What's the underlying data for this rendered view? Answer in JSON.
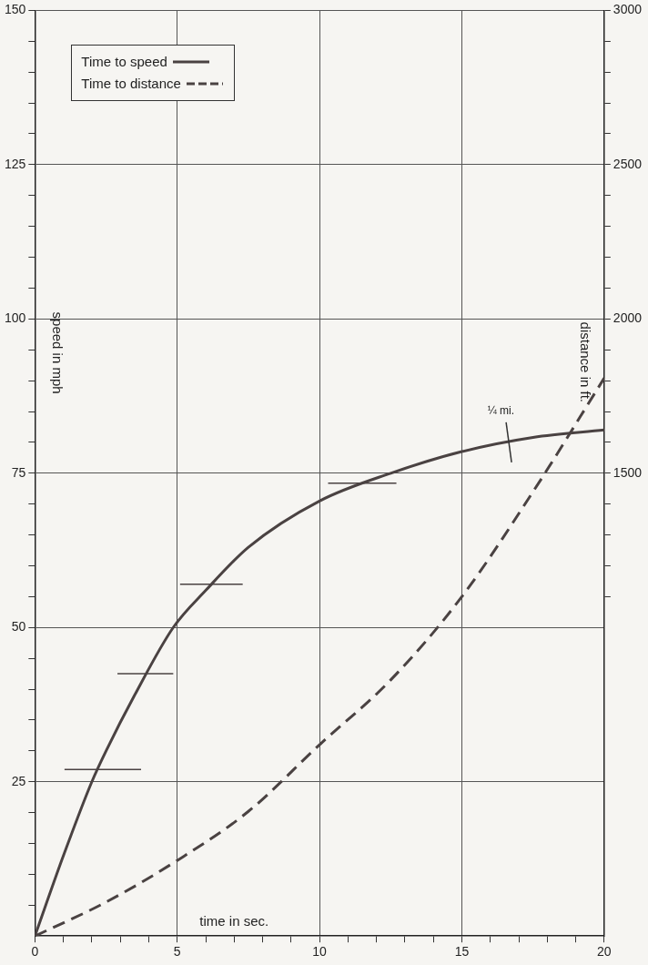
{
  "chart_data": {
    "type": "line",
    "xlabel": "time in sec.",
    "ylabel": "speed in mph",
    "y2label": "distance in ft.",
    "xlim": [
      0,
      20
    ],
    "xticks": [
      0,
      {
        "value": 1,
        "label": null
      },
      {
        "value": 2,
        "label": null
      },
      {
        "value": 3,
        "label": null
      },
      {
        "value": 4,
        "label": null
      },
      5,
      {
        "value": 6,
        "label": null
      },
      {
        "value": 7,
        "label": null
      },
      {
        "value": 8,
        "label": null
      },
      {
        "value": 9,
        "label": null
      },
      10,
      {
        "value": 11,
        "label": null
      },
      {
        "value": 12,
        "label": null
      },
      {
        "value": 13,
        "label": null
      },
      {
        "value": 14,
        "label": null
      },
      15,
      {
        "value": 16,
        "label": null
      },
      {
        "value": 17,
        "label": null
      },
      {
        "value": 18,
        "label": null
      },
      {
        "value": 19,
        "label": null
      },
      20
    ],
    "ylim": [
      0,
      150
    ],
    "yticks": [
      {
        "value": 5,
        "label": null
      },
      {
        "value": 10,
        "label": null
      },
      {
        "value": 15,
        "label": null
      },
      {
        "value": 20,
        "label": null
      },
      25,
      {
        "value": 30,
        "label": null
      },
      {
        "value": 35,
        "label": null
      },
      {
        "value": 40,
        "label": null
      },
      {
        "value": 45,
        "label": null
      },
      50,
      {
        "value": 55,
        "label": null
      },
      {
        "value": 60,
        "label": null
      },
      {
        "value": 65,
        "label": null
      },
      {
        "value": 70,
        "label": null
      },
      75,
      {
        "value": 80,
        "label": null
      },
      {
        "value": 85,
        "label": null
      },
      {
        "value": 90,
        "label": null
      },
      {
        "value": 95,
        "label": null
      },
      100,
      {
        "value": 105,
        "label": null
      },
      {
        "value": 110,
        "label": null
      },
      {
        "value": 115,
        "label": null
      },
      {
        "value": 120,
        "label": null
      },
      125,
      {
        "value": 130,
        "label": null
      },
      {
        "value": 135,
        "label": null
      },
      {
        "value": 140,
        "label": null
      },
      {
        "value": 145,
        "label": null
      },
      150
    ],
    "y2lim": [
      0,
      3000
    ],
    "y2ticks": [
      {
        "value": 1100,
        "label": null
      },
      {
        "value": 1200,
        "label": null
      },
      {
        "value": 1300,
        "label": null
      },
      {
        "value": 1400,
        "label": null
      },
      1500,
      {
        "value": 1600,
        "label": null
      },
      {
        "value": 1700,
        "label": null
      },
      {
        "value": 1800,
        "label": null
      },
      {
        "value": 1900,
        "label": null
      },
      2000,
      {
        "value": 2100,
        "label": null
      },
      {
        "value": 2200,
        "label": null
      },
      {
        "value": 2300,
        "label": null
      },
      {
        "value": 2400,
        "label": null
      },
      2500,
      {
        "value": 2600,
        "label": null
      },
      {
        "value": 2700,
        "label": null
      },
      {
        "value": 2800,
        "label": null
      },
      {
        "value": 2900,
        "label": null
      },
      3000
    ],
    "grid": true,
    "legend": "top left",
    "marker": "none",
    "annotations": [
      {
        "text": "¼ mi.",
        "x": 16.65,
        "y": 80
      }
    ],
    "series": [
      {
        "name": "Time to speed",
        "color": "#4a4242",
        "line_style": "solid",
        "x": [
          0,
          1,
          2,
          2.5,
          3.5,
          4.86,
          6,
          7.5,
          10,
          12.5,
          15,
          17.5,
          20
        ],
        "values": [
          0,
          13,
          25,
          30,
          39,
          50,
          56,
          63,
          70.5,
          75,
          78.5,
          80.8,
          82
        ]
      },
      {
        "name": "Time to distance",
        "color": "#4a4242",
        "line_style": "dashed",
        "axis": "y2",
        "x": [
          0,
          2.5,
          5,
          7.5,
          10,
          12.5,
          15,
          17.5,
          20
        ],
        "values": [
          0,
          110,
          245,
          404,
          620,
          830,
          1100,
          1440,
          1808
        ]
      },
      {
        "color": "#4a4242",
        "line_style": "solid",
        "x": [
          1.04,
          3.73
        ],
        "values": [
          27,
          27
        ]
      },
      {
        "color": "#4a4242",
        "line_style": "solid",
        "x": [
          2.9,
          4.86
        ],
        "values": [
          42.5,
          42.5
        ]
      },
      {
        "color": "#4a4242",
        "line_style": "solid",
        "x": [
          5.1,
          7.3
        ],
        "values": [
          57,
          57
        ]
      },
      {
        "color": "#4a4242",
        "line_style": "solid",
        "x": [
          10.3,
          12.7
        ],
        "values": [
          73.4,
          73.4
        ]
      }
    ]
  }
}
